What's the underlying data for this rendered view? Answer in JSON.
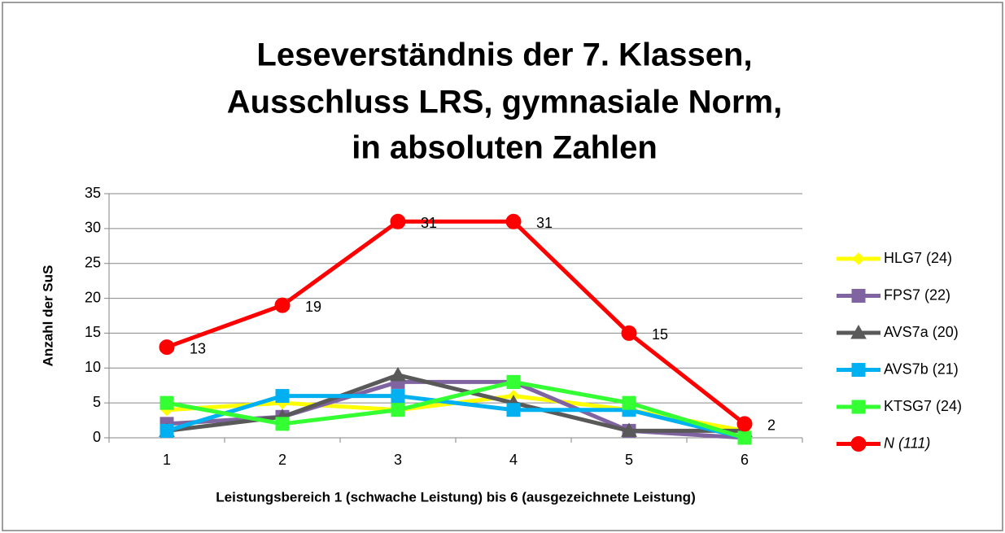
{
  "chart_data": {
    "type": "line",
    "title": [
      "Leseverständnis der 7. Klassen,",
      "Ausschluss LRS, gymnasiale Norm,",
      "in absoluten Zahlen"
    ],
    "x_label": "Leistungsbereich 1 (schwache Leistung) bis 6 (ausgezeichnete Leistung)",
    "y_label": "Anzahl der SuS",
    "categories": [
      1,
      2,
      3,
      4,
      5,
      6
    ],
    "series": [
      {
        "name": "HLG7 (24)",
        "color": "#ffff00",
        "marker": "diamond",
        "values": [
          4,
          5,
          4,
          6,
          4,
          1
        ]
      },
      {
        "name": "FPS7 (22)",
        "color": "#8064a2",
        "marker": "square",
        "values": [
          2,
          3,
          8,
          8,
          1,
          0
        ]
      },
      {
        "name": "AVS7a (20)",
        "color": "#595959",
        "marker": "triangle",
        "values": [
          1,
          3,
          9,
          5,
          1,
          1
        ]
      },
      {
        "name": "AVS7b (21)",
        "color": "#00b0f0",
        "marker": "square",
        "values": [
          1,
          6,
          6,
          4,
          4,
          0
        ]
      },
      {
        "name": "KTSG7 (24)",
        "color": "#33ff33",
        "marker": "square",
        "values": [
          5,
          2,
          4,
          8,
          5,
          0
        ]
      },
      {
        "name": "N (111)",
        "color": "#ff0000",
        "marker": "circle",
        "italic": true,
        "data_labels": true,
        "values": [
          13,
          19,
          31,
          31,
          15,
          2
        ]
      }
    ],
    "ylim": [
      0,
      35
    ],
    "yticks": [
      0,
      5,
      10,
      15,
      20,
      25,
      30,
      35
    ],
    "grid": true,
    "legend": "right"
  }
}
